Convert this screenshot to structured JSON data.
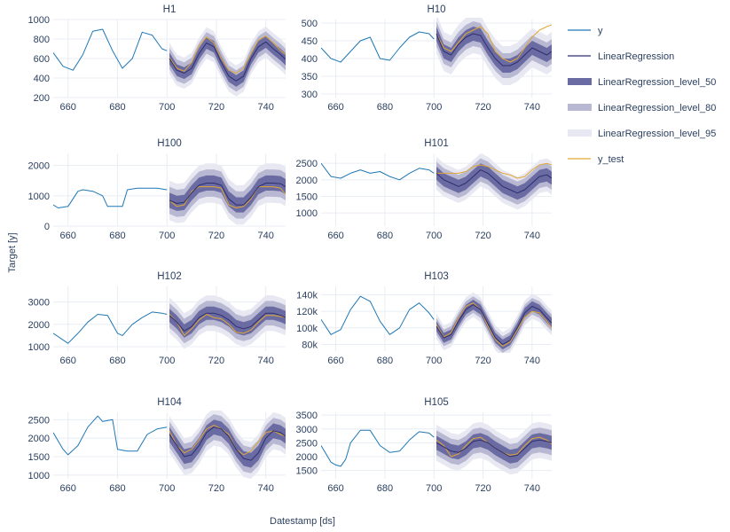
{
  "chart_data": {
    "type": "line",
    "xlabel": "Datestamp [ds]",
    "ylabel": "Target [y]",
    "xlim": [
      654,
      748
    ],
    "xticks": [
      660,
      680,
      700,
      720,
      740
    ],
    "legend_position": "right",
    "legend": [
      {
        "name": "y",
        "kind": "line",
        "color": "#1f77b4"
      },
      {
        "name": "LinearRegression",
        "kind": "line",
        "color": "#2e2e6e"
      },
      {
        "name": "LinearRegression_level_50",
        "kind": "band",
        "color": "#6b6ba3"
      },
      {
        "name": "LinearRegression_level_80",
        "kind": "band",
        "color": "#b8b8d2"
      },
      {
        "name": "LinearRegression_level_95",
        "kind": "band",
        "color": "#e8e8f2"
      },
      {
        "name": "y_test",
        "kind": "line",
        "color": "#e0a734"
      }
    ],
    "panels": [
      {
        "title": "H1",
        "ylim": [
          200,
          1000
        ],
        "yticks": [
          200,
          400,
          600,
          800,
          1000
        ],
        "ytick_labels": [
          "200",
          "400",
          "600",
          "800",
          "1000"
        ],
        "y": {
          "x": [
            654,
            658,
            662,
            666,
            670,
            674,
            678,
            682,
            686,
            690,
            694,
            698,
            700
          ],
          "v": [
            660,
            520,
            480,
            640,
            880,
            900,
            680,
            500,
            600,
            870,
            840,
            700,
            680
          ]
        },
        "forecast": {
          "x": [
            701,
            704,
            707,
            710,
            713,
            716,
            719,
            722,
            725,
            728,
            731,
            734,
            737,
            740,
            743,
            746,
            748
          ],
          "v": [
            600,
            480,
            450,
            500,
            650,
            760,
            720,
            560,
            420,
            370,
            420,
            600,
            720,
            770,
            700,
            640,
            590
          ]
        },
        "w50": 60,
        "w80": 110,
        "w95": 160,
        "y_test": {
          "x": [
            701,
            704,
            707,
            710,
            713,
            716,
            719,
            722,
            725,
            728,
            731,
            734,
            737,
            740,
            743,
            746,
            748
          ],
          "v": [
            610,
            500,
            470,
            560,
            730,
            820,
            760,
            600,
            480,
            450,
            500,
            650,
            790,
            830,
            760,
            680,
            640
          ]
        }
      },
      {
        "title": "H10",
        "ylim": [
          290,
          510
        ],
        "yticks": [
          300,
          350,
          400,
          450,
          500
        ],
        "ytick_labels": [
          "300",
          "350",
          "400",
          "450",
          "500"
        ],
        "y": {
          "x": [
            654,
            658,
            662,
            666,
            670,
            674,
            678,
            682,
            686,
            690,
            694,
            698,
            700
          ],
          "v": [
            430,
            400,
            390,
            420,
            450,
            460,
            400,
            395,
            430,
            460,
            475,
            470,
            455
          ]
        },
        "forecast": {
          "x": [
            701,
            704,
            707,
            710,
            713,
            716,
            719,
            722,
            725,
            728,
            731,
            734,
            737,
            740,
            743,
            746,
            748
          ],
          "v": [
            470,
            420,
            410,
            440,
            460,
            470,
            465,
            430,
            400,
            380,
            380,
            390,
            410,
            430,
            420,
            410,
            420
          ]
        },
        "w50": 20,
        "w80": 35,
        "w95": 55,
        "y_test": {
          "x": [
            701,
            704,
            707,
            710,
            713,
            716,
            719,
            722,
            725,
            728,
            731,
            734,
            737,
            740,
            743,
            746,
            748
          ],
          "v": [
            470,
            430,
            420,
            445,
            470,
            480,
            490,
            470,
            420,
            400,
            390,
            400,
            430,
            460,
            480,
            490,
            495
          ]
        }
      },
      {
        "title": "H100",
        "ylim": [
          0,
          2400
        ],
        "yticks": [
          0,
          1000,
          2000
        ],
        "ytick_labels": [
          "0",
          "1000",
          "2000"
        ],
        "y": {
          "x": [
            654,
            656,
            660,
            664,
            666,
            670,
            674,
            676,
            678,
            682,
            684,
            688,
            692,
            696,
            700
          ],
          "v": [
            700,
            600,
            650,
            1150,
            1200,
            1150,
            1000,
            650,
            650,
            650,
            1200,
            1250,
            1250,
            1250,
            1200
          ]
        },
        "forecast": {
          "x": [
            701,
            704,
            707,
            710,
            713,
            716,
            719,
            722,
            725,
            728,
            731,
            734,
            737,
            740,
            743,
            746,
            748
          ],
          "v": [
            850,
            750,
            780,
            1100,
            1350,
            1420,
            1420,
            1350,
            900,
            700,
            700,
            950,
            1300,
            1420,
            1420,
            1400,
            1300
          ]
        },
        "w50": 250,
        "w80": 450,
        "w95": 650,
        "y_test": {
          "x": [
            701,
            704,
            707,
            710,
            713,
            716,
            719,
            722,
            725,
            728,
            731,
            734,
            737,
            740,
            743,
            746,
            748
          ],
          "v": [
            850,
            650,
            700,
            1150,
            1300,
            1300,
            1300,
            1250,
            700,
            600,
            650,
            900,
            1300,
            1300,
            1300,
            1250,
            1050
          ]
        }
      },
      {
        "title": "H101",
        "ylim": [
          600,
          2800
        ],
        "yticks": [
          1000,
          1500,
          2000,
          2500
        ],
        "ytick_labels": [
          "1000",
          "1500",
          "2000",
          "2500"
        ],
        "y": {
          "x": [
            654,
            658,
            662,
            666,
            670,
            674,
            678,
            682,
            686,
            690,
            694,
            698,
            700
          ],
          "v": [
            2500,
            2100,
            2050,
            2200,
            2300,
            2200,
            2250,
            2100,
            2000,
            2200,
            2350,
            2300,
            2200
          ]
        },
        "forecast": {
          "x": [
            701,
            704,
            707,
            710,
            713,
            716,
            719,
            722,
            725,
            728,
            731,
            734,
            737,
            740,
            743,
            746,
            748
          ],
          "v": [
            2200,
            2000,
            1900,
            1800,
            1900,
            2100,
            2300,
            2200,
            2000,
            1800,
            1700,
            1600,
            1700,
            1900,
            2100,
            2150,
            2050
          ]
        },
        "w50": 200,
        "w80": 350,
        "w95": 500,
        "y_test": {
          "x": [
            701,
            704,
            707,
            710,
            713,
            716,
            719,
            722,
            725,
            728,
            731,
            734,
            737,
            740,
            743,
            746,
            748
          ],
          "v": [
            2200,
            2200,
            2200,
            2200,
            2250,
            2400,
            2450,
            2400,
            2300,
            2200,
            2150,
            2050,
            2100,
            2300,
            2450,
            2500,
            2450
          ]
        }
      },
      {
        "title": "H102",
        "ylim": [
          800,
          3700
        ],
        "yticks": [
          1000,
          2000,
          3000
        ],
        "ytick_labels": [
          "1000",
          "2000",
          "3000"
        ],
        "y": {
          "x": [
            654,
            658,
            660,
            664,
            668,
            672,
            676,
            680,
            682,
            686,
            690,
            694,
            698,
            700
          ],
          "v": [
            1600,
            1300,
            1150,
            1600,
            2100,
            2450,
            2400,
            1600,
            1500,
            2000,
            2300,
            2550,
            2500,
            2450
          ]
        },
        "forecast": {
          "x": [
            701,
            704,
            707,
            710,
            713,
            716,
            719,
            722,
            725,
            728,
            731,
            734,
            737,
            740,
            743,
            746,
            748
          ],
          "v": [
            2400,
            2100,
            1700,
            1900,
            2300,
            2500,
            2500,
            2400,
            2200,
            1900,
            1800,
            1900,
            2200,
            2500,
            2500,
            2400,
            2300
          ]
        },
        "w50": 300,
        "w80": 550,
        "w95": 800,
        "y_test": {
          "x": [
            701,
            704,
            707,
            710,
            713,
            716,
            719,
            722,
            725,
            728,
            731,
            734,
            737,
            740,
            743,
            746,
            748
          ],
          "v": [
            2450,
            2100,
            1500,
            1800,
            2200,
            2450,
            2300,
            2250,
            2000,
            1650,
            1600,
            1750,
            2100,
            2400,
            2400,
            2350,
            2300
          ]
        }
      },
      {
        "title": "H103",
        "ylim": [
          72000,
          150000
        ],
        "yticks": [
          80000,
          100000,
          120000,
          140000
        ],
        "ytick_labels": [
          "80k",
          "100k",
          "120k",
          "140k"
        ],
        "y": {
          "x": [
            654,
            658,
            662,
            666,
            670,
            674,
            678,
            682,
            686,
            690,
            694,
            698,
            700
          ],
          "v": [
            110000,
            92000,
            98000,
            122000,
            138000,
            132000,
            108000,
            92000,
            100000,
            122000,
            130000,
            118000,
            110000
          ]
        },
        "forecast": {
          "x": [
            701,
            704,
            707,
            710,
            713,
            716,
            719,
            722,
            725,
            728,
            731,
            734,
            737,
            740,
            743,
            746,
            748
          ],
          "v": [
            102000,
            88000,
            92000,
            108000,
            122000,
            128000,
            122000,
            105000,
            88000,
            80000,
            85000,
            100000,
            118000,
            126000,
            122000,
            112000,
            106000
          ]
        },
        "w50": 6000,
        "w80": 10000,
        "w95": 15000,
        "y_test": {
          "x": [
            701,
            704,
            707,
            710,
            713,
            716,
            719,
            722,
            725,
            728,
            731,
            734,
            737,
            740,
            743,
            746,
            748
          ],
          "v": [
            104000,
            89000,
            94000,
            112000,
            126000,
            130000,
            122000,
            102000,
            86000,
            78000,
            83000,
            98000,
            113000,
            120000,
            118000,
            108000,
            100000
          ]
        }
      },
      {
        "title": "H104",
        "ylim": [
          900,
          2700
        ],
        "yticks": [
          1000,
          1500,
          2000,
          2500
        ],
        "ytick_labels": [
          "1000",
          "1500",
          "2000",
          "2500"
        ],
        "y": {
          "x": [
            654,
            658,
            660,
            664,
            668,
            672,
            674,
            678,
            680,
            684,
            688,
            692,
            696,
            700
          ],
          "v": [
            2150,
            1700,
            1550,
            1800,
            2300,
            2600,
            2450,
            2500,
            1700,
            1650,
            1650,
            2100,
            2250,
            2300
          ]
        },
        "forecast": {
          "x": [
            701,
            704,
            707,
            710,
            713,
            716,
            719,
            722,
            725,
            728,
            731,
            734,
            737,
            740,
            743,
            746,
            748
          ],
          "v": [
            2100,
            1800,
            1500,
            1550,
            1800,
            2150,
            2300,
            2250,
            2050,
            1700,
            1450,
            1400,
            1600,
            2000,
            2200,
            2150,
            2050
          ]
        },
        "w50": 200,
        "w80": 350,
        "w95": 500,
        "y_test": {
          "x": [
            701,
            704,
            707,
            710,
            713,
            716,
            719,
            722,
            725,
            728,
            731,
            734,
            737,
            740,
            743,
            746,
            748
          ],
          "v": [
            2200,
            1800,
            1600,
            1700,
            1950,
            2250,
            2350,
            2250,
            2100,
            1700,
            1550,
            1650,
            1900,
            2150,
            2200,
            2100,
            2050
          ]
        }
      },
      {
        "title": "H105",
        "ylim": [
          1200,
          3600
        ],
        "yticks": [
          1500,
          2000,
          2500,
          3000,
          3500
        ],
        "ytick_labels": [
          "1500",
          "2000",
          "2500",
          "3000",
          "3500"
        ],
        "y": {
          "x": [
            654,
            658,
            660,
            662,
            664,
            666,
            670,
            674,
            678,
            682,
            686,
            690,
            694,
            698,
            700
          ],
          "v": [
            2400,
            1800,
            1700,
            1650,
            1900,
            2500,
            2950,
            2950,
            2400,
            2150,
            2200,
            2600,
            2900,
            2850,
            2700
          ]
        },
        "forecast": {
          "x": [
            701,
            704,
            707,
            710,
            713,
            716,
            719,
            722,
            725,
            728,
            731,
            734,
            737,
            740,
            743,
            746,
            748
          ],
          "v": [
            2500,
            2350,
            2200,
            2150,
            2300,
            2550,
            2600,
            2500,
            2300,
            2150,
            2000,
            2050,
            2300,
            2550,
            2600,
            2550,
            2500
          ]
        },
        "w50": 250,
        "w80": 450,
        "w95": 650,
        "y_test": {
          "x": [
            701,
            704,
            707,
            710,
            713,
            716,
            719,
            722,
            725,
            728,
            731,
            734,
            737,
            740,
            743,
            746,
            748
          ],
          "v": [
            2600,
            2400,
            2000,
            2100,
            2400,
            2650,
            2700,
            2500,
            2300,
            2150,
            2050,
            2100,
            2400,
            2650,
            2700,
            2600,
            2450
          ]
        }
      }
    ]
  }
}
